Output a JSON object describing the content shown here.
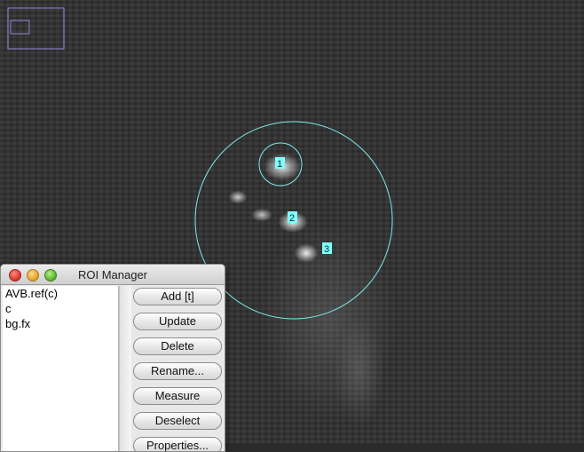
{
  "window": {
    "title": "ROI Manager"
  },
  "roi_list": {
    "items": [
      "AVB.ref(c)",
      "c",
      "bg.fx"
    ]
  },
  "buttons": {
    "add": "Add [t]",
    "update": "Update",
    "delete": "Delete",
    "rename": "Rename...",
    "measure": "Measure",
    "deselect": "Deselect",
    "properties": "Properties..."
  },
  "overlay": {
    "labels": [
      "1",
      "2",
      "3"
    ],
    "roi_color": "#7fe8e8",
    "label_bg": "#7fffff",
    "navigator_color": "#8b8bd6"
  }
}
